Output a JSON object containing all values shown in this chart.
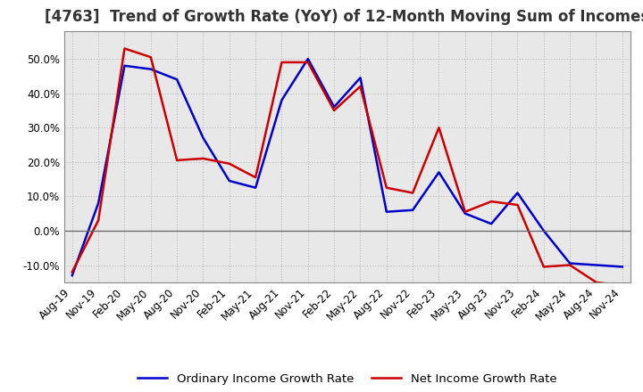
{
  "title": "[4763]  Trend of Growth Rate (YoY) of 12-Month Moving Sum of Incomes",
  "labels": [
    "Aug-19",
    "Nov-19",
    "Feb-20",
    "May-20",
    "Aug-20",
    "Nov-20",
    "Feb-21",
    "May-21",
    "Aug-21",
    "Nov-21",
    "Feb-22",
    "May-22",
    "Aug-22",
    "Nov-22",
    "Feb-23",
    "May-23",
    "Aug-23",
    "Nov-23",
    "Feb-24",
    "May-24",
    "Aug-24",
    "Nov-24"
  ],
  "ordinary_income": [
    -13.0,
    8.0,
    48.0,
    47.0,
    44.0,
    27.0,
    14.5,
    12.5,
    38.0,
    50.0,
    36.0,
    44.5,
    5.5,
    6.0,
    17.0,
    5.0,
    2.0,
    11.0,
    0.0,
    -9.5,
    -10.0,
    -10.5
  ],
  "net_income": [
    -12.0,
    3.0,
    53.0,
    50.5,
    20.5,
    21.0,
    19.5,
    15.5,
    49.0,
    49.0,
    35.0,
    42.0,
    12.5,
    11.0,
    30.0,
    5.5,
    8.5,
    7.5,
    -10.5,
    -10.0,
    -15.0,
    -16.0
  ],
  "ordinary_color": "#0000CC",
  "net_color": "#CC0000",
  "background_color": "#FFFFFF",
  "plot_bg_color": "#E8E8E8",
  "grid_color": "#BBBBBB",
  "ylim": [
    -15,
    58
  ],
  "yticks": [
    -10.0,
    0.0,
    10.0,
    20.0,
    30.0,
    40.0,
    50.0
  ],
  "legend_ordinary": "Ordinary Income Growth Rate",
  "legend_net": "Net Income Growth Rate",
  "title_fontsize": 12,
  "axis_fontsize": 8.5,
  "legend_fontsize": 9.5
}
